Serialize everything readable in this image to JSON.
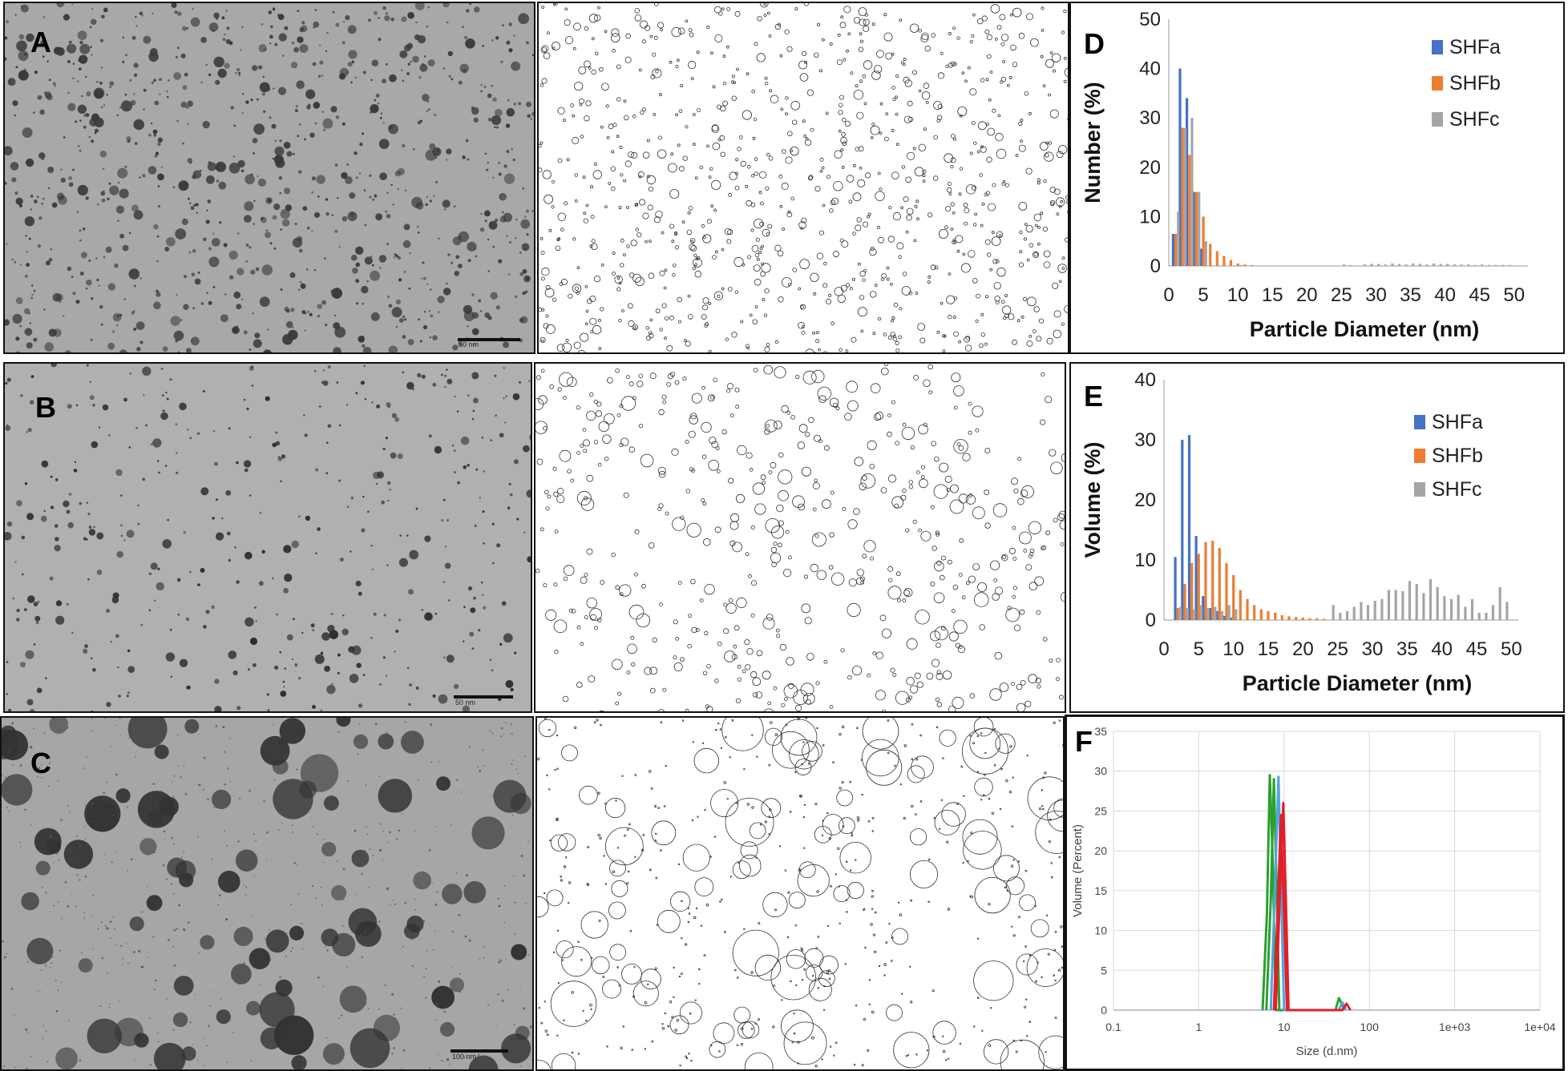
{
  "panels": {
    "a": {
      "letter": "A",
      "scale_label": "50 nm"
    },
    "b": {
      "letter": "B",
      "scale_label": "50 nm"
    },
    "c": {
      "letter": "C",
      "scale_label": "100 nm"
    },
    "d": {
      "letter": "D"
    },
    "e": {
      "letter": "E"
    },
    "f": {
      "letter": "F"
    }
  },
  "colors": {
    "SHFa": "#4472c4",
    "SHFb": "#ed7d31",
    "SHFc": "#a5a5a5",
    "f_green": "#2ca02c",
    "f_blue": "#4aa8e0",
    "f_red": "#e0202a",
    "grid": "#d9d9d9"
  },
  "chart_data": [
    {
      "type": "bar",
      "panel": "D",
      "xlabel": "Particle Diameter (nm)",
      "ylabel": "Number  (%)",
      "xlim": [
        0,
        52
      ],
      "ylim": [
        0,
        50
      ],
      "xticks": [
        0,
        5,
        10,
        15,
        20,
        25,
        30,
        35,
        40,
        45,
        50
      ],
      "yticks": [
        0,
        10,
        20,
        30,
        40,
        50
      ],
      "legend": "top-right",
      "series": [
        {
          "name": "SHFa",
          "points": [
            [
              1,
              6.5
            ],
            [
              2,
              40
            ],
            [
              3,
              34
            ],
            [
              4,
              15
            ],
            [
              5,
              3.5
            ]
          ]
        },
        {
          "name": "SHFb",
          "points": [
            [
              1,
              6.5
            ],
            [
              2,
              28
            ],
            [
              3,
              22.5
            ],
            [
              4,
              15
            ],
            [
              5,
              10
            ],
            [
              6,
              4.5
            ],
            [
              7,
              3
            ],
            [
              8,
              2
            ],
            [
              9,
              1.2
            ],
            [
              10,
              0.5
            ],
            [
              11,
              0.3
            ],
            [
              12,
              0.2
            ]
          ]
        },
        {
          "name": "SHFc",
          "points": [
            [
              1,
              11
            ],
            [
              2,
              28
            ],
            [
              3,
              30
            ],
            [
              4,
              15
            ],
            [
              5,
              5
            ],
            [
              10,
              0.2
            ],
            [
              15,
              0.1
            ],
            [
              20,
              0.1
            ],
            [
              25,
              0.3
            ],
            [
              26,
              0.2
            ],
            [
              28,
              0.3
            ],
            [
              29,
              0.4
            ],
            [
              30,
              0.4
            ],
            [
              31,
              0.3
            ],
            [
              32,
              0.5
            ],
            [
              33,
              0.4
            ],
            [
              34,
              0.3
            ],
            [
              35,
              0.5
            ],
            [
              36,
              0.4
            ],
            [
              37,
              0.3
            ],
            [
              38,
              0.5
            ],
            [
              39,
              0.4
            ],
            [
              40,
              0.4
            ],
            [
              41,
              0.3
            ],
            [
              42,
              0.3
            ],
            [
              43,
              0.3
            ],
            [
              44,
              0.2
            ],
            [
              45,
              0.3
            ],
            [
              46,
              0.2
            ],
            [
              47,
              0.2
            ],
            [
              48,
              0.2
            ],
            [
              49,
              0.2
            ]
          ]
        }
      ]
    },
    {
      "type": "bar",
      "panel": "E",
      "xlabel": "Particle Diameter (nm)",
      "ylabel": "Volume (%)",
      "xlim": [
        0,
        51
      ],
      "ylim": [
        0,
        40
      ],
      "xticks": [
        0,
        5,
        10,
        15,
        20,
        25,
        30,
        35,
        40,
        45,
        50
      ],
      "yticks": [
        0,
        10,
        20,
        30,
        40
      ],
      "legend": "top-right",
      "series": [
        {
          "name": "SHFa",
          "points": [
            [
              2,
              10.5
            ],
            [
              3,
              30
            ],
            [
              4,
              30.8
            ],
            [
              5,
              14
            ],
            [
              6,
              4
            ],
            [
              7,
              2
            ],
            [
              8,
              1.5
            ],
            [
              9,
              0.7
            ],
            [
              10,
              0.4
            ]
          ]
        },
        {
          "name": "SHFb",
          "points": [
            [
              2,
              2
            ],
            [
              3,
              6
            ],
            [
              4,
              9.5
            ],
            [
              5,
              11
            ],
            [
              6,
              13
            ],
            [
              7,
              13.2
            ],
            [
              8,
              12
            ],
            [
              9,
              9.5
            ],
            [
              10,
              7.5
            ],
            [
              11,
              5
            ],
            [
              12,
              3.5
            ],
            [
              13,
              2.5
            ],
            [
              14,
              1.8
            ],
            [
              15,
              1.5
            ],
            [
              16,
              1.2
            ],
            [
              17,
              0.8
            ],
            [
              18,
              0.6
            ],
            [
              19,
              0.5
            ],
            [
              20,
              0.4
            ],
            [
              21,
              0.3
            ],
            [
              22,
              0.3
            ],
            [
              23,
              0.2
            ]
          ]
        },
        {
          "name": "SHFc",
          "points": [
            [
              2,
              2.2
            ],
            [
              3,
              2
            ],
            [
              4,
              1.8
            ],
            [
              5,
              2.5
            ],
            [
              6,
              2
            ],
            [
              7,
              2.2
            ],
            [
              8,
              1.5
            ],
            [
              9,
              2.5
            ],
            [
              10,
              1.8
            ],
            [
              24,
              2.5
            ],
            [
              25,
              1.2
            ],
            [
              26,
              1.5
            ],
            [
              27,
              2.2
            ],
            [
              28,
              3
            ],
            [
              29,
              2.5
            ],
            [
              30,
              3.2
            ],
            [
              31,
              3.5
            ],
            [
              32,
              5
            ],
            [
              33,
              5
            ],
            [
              34,
              4.8
            ],
            [
              35,
              6.5
            ],
            [
              36,
              6
            ],
            [
              37,
              4.5
            ],
            [
              38,
              6.8
            ],
            [
              39,
              5.5
            ],
            [
              40,
              4
            ],
            [
              41,
              3.5
            ],
            [
              42,
              4.2
            ],
            [
              43,
              2.2
            ],
            [
              44,
              3.5
            ],
            [
              45,
              1.2
            ],
            [
              46,
              1.2
            ],
            [
              47,
              2.5
            ],
            [
              48,
              5.5
            ],
            [
              49,
              3
            ]
          ]
        }
      ]
    },
    {
      "type": "line",
      "panel": "F",
      "xlabel": "Size (d.nm)",
      "ylabel": "Volume (Percent)",
      "xscale": "log",
      "xlim": [
        0.1,
        10000
      ],
      "ylim": [
        0,
        35
      ],
      "xtick_labels": [
        "0.1",
        "1",
        "10",
        "100",
        "1e+03",
        "1e+04"
      ],
      "yticks": [
        0,
        5,
        10,
        15,
        20,
        25,
        30,
        35
      ],
      "grid": true,
      "series": [
        {
          "color_key": "f_green",
          "points": [
            [
              5.6,
              0
            ],
            [
              6.3,
              12
            ],
            [
              6.8,
              29.5
            ],
            [
              7.4,
              18
            ],
            [
              8.0,
              0
            ],
            [
              40,
              0
            ],
            [
              44,
              1.5
            ],
            [
              49,
              0.5
            ],
            [
              52,
              0
            ]
          ]
        },
        {
          "color_key": "f_green",
          "points": [
            [
              6.2,
              0
            ],
            [
              7.0,
              14
            ],
            [
              7.6,
              29
            ],
            [
              8.2,
              15
            ],
            [
              8.8,
              0
            ]
          ]
        },
        {
          "color_key": "f_blue",
          "points": [
            [
              7.0,
              0
            ],
            [
              7.8,
              15
            ],
            [
              8.6,
              29.3
            ],
            [
              9.3,
              14
            ],
            [
              10.0,
              0
            ],
            [
              44,
              0
            ],
            [
              48,
              1.0
            ],
            [
              53,
              0
            ]
          ]
        },
        {
          "color_key": "f_red",
          "points": [
            [
              7.6,
              0
            ],
            [
              8.4,
              12
            ],
            [
              9.2,
              24.5
            ],
            [
              10.0,
              12
            ],
            [
              10.8,
              0
            ],
            [
              48,
              0
            ],
            [
              54,
              0.8
            ],
            [
              60,
              0
            ]
          ]
        },
        {
          "color_key": "f_red",
          "points": [
            [
              8.0,
              0
            ],
            [
              8.9,
              14
            ],
            [
              9.8,
              26
            ],
            [
              10.6,
              12
            ],
            [
              11.3,
              0
            ]
          ]
        }
      ]
    }
  ]
}
